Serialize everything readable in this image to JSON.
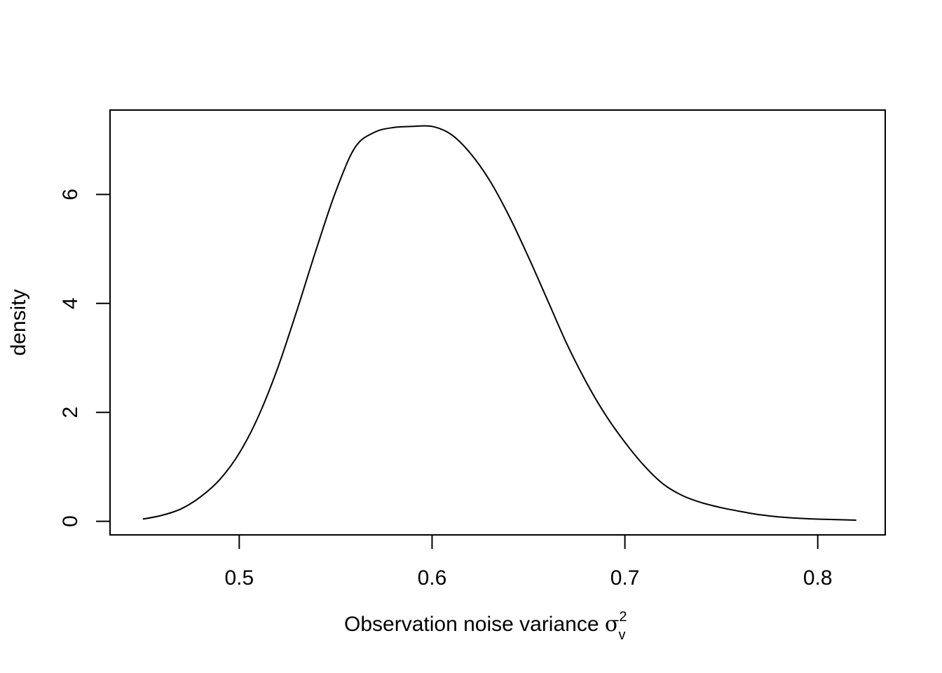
{
  "chart_data": {
    "type": "line",
    "xlabel_main": "Observation noise variance ",
    "xlabel_symbol": "σ",
    "xlabel_superscript": "2",
    "xlabel_subscript": "v",
    "ylabel": "density",
    "xlim": [
      0.433,
      0.835
    ],
    "ylim": [
      -0.25,
      7.55
    ],
    "x_ticks": [
      0.5,
      0.6,
      0.7,
      0.8
    ],
    "x_tick_labels": [
      "0.5",
      "0.6",
      "0.7",
      "0.8"
    ],
    "y_ticks": [
      0,
      2,
      4,
      6
    ],
    "y_tick_labels": [
      "0",
      "2",
      "4",
      "6"
    ],
    "grid": false,
    "series": [
      {
        "x": [
          0.45,
          0.46,
          0.47,
          0.48,
          0.49,
          0.5,
          0.51,
          0.52,
          0.53,
          0.54,
          0.55,
          0.56,
          0.57,
          0.58,
          0.59,
          0.6,
          0.61,
          0.62,
          0.63,
          0.64,
          0.65,
          0.66,
          0.67,
          0.68,
          0.69,
          0.7,
          0.71,
          0.72,
          0.73,
          0.74,
          0.75,
          0.76,
          0.77,
          0.78,
          0.79,
          0.8,
          0.81,
          0.82
        ],
        "y": [
          0.04,
          0.11,
          0.23,
          0.45,
          0.77,
          1.25,
          1.93,
          2.82,
          3.88,
          5.0,
          6.05,
          6.86,
          7.14,
          7.23,
          7.25,
          7.25,
          7.1,
          6.75,
          6.25,
          5.6,
          4.85,
          4.05,
          3.25,
          2.55,
          1.95,
          1.45,
          1.02,
          0.68,
          0.47,
          0.34,
          0.25,
          0.18,
          0.12,
          0.08,
          0.055,
          0.04,
          0.03,
          0.02
        ]
      }
    ]
  }
}
